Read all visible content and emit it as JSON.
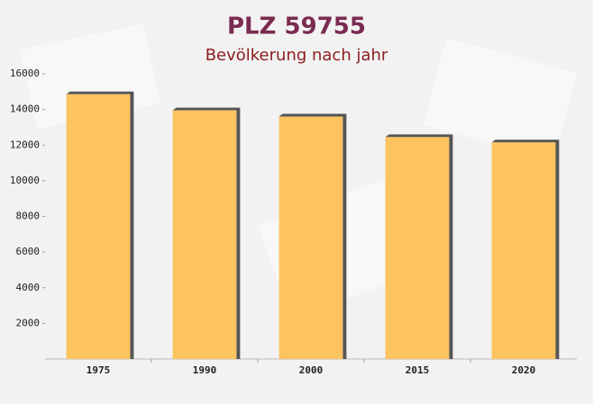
{
  "chart_data": {
    "type": "bar",
    "title": "PLZ 59755",
    "subtitle": "Bevölkerung nach jahr",
    "categories": [
      "1975",
      "1990",
      "2000",
      "2015",
      "2020"
    ],
    "values": [
      14850,
      13950,
      13600,
      12450,
      12150
    ],
    "color": "#fcc35f",
    "ylim": [
      0,
      16000
    ],
    "yticks": [
      2000,
      4000,
      6000,
      8000,
      10000,
      12000,
      14000,
      16000
    ],
    "grid": false
  }
}
